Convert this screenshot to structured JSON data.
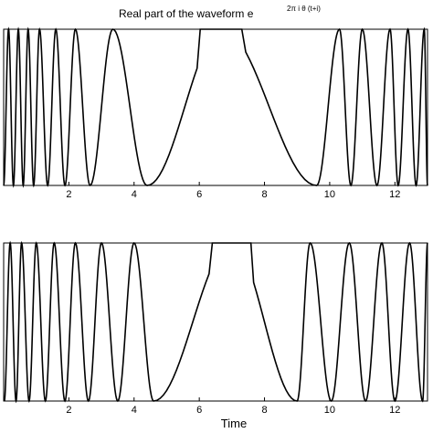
{
  "chart_data": [
    {
      "type": "line",
      "title": "Real part of the waveform e",
      "title_superscript": "2π i θ (t+i)",
      "xlabel": "",
      "ylabel": "",
      "xlim": [
        0,
        13
      ],
      "ylim": [
        -1,
        1
      ],
      "xticks": [
        2,
        4,
        6,
        8,
        10,
        12
      ],
      "grid": false,
      "legend": "none",
      "series": [
        {
          "peaks_x": [
            0.15,
            0.45,
            0.75,
            1.1,
            1.6,
            2.2,
            3.35,
            6.7,
            10.3,
            11.0,
            11.85,
            12.4,
            12.9
          ],
          "troughs_x": [
            0.3,
            0.6,
            0.92,
            1.35,
            1.88,
            2.65,
            4.4,
            9.6,
            10.65,
            11.45,
            12.1,
            12.65
          ],
          "flat_top_range": [
            6.0,
            7.4
          ]
        }
      ]
    },
    {
      "type": "line",
      "title": "",
      "xlabel": "Time",
      "ylabel": "",
      "xlim": [
        0,
        13
      ],
      "ylim": [
        -1,
        1
      ],
      "xticks": [
        2,
        4,
        6,
        8,
        10,
        12
      ],
      "grid": false,
      "legend": "none",
      "series": [
        {
          "peaks_x": [
            0.2,
            0.55,
            1.0,
            1.55,
            2.2,
            3.0,
            4.0,
            7.0,
            9.4,
            10.6,
            11.6,
            12.45
          ],
          "troughs_x": [
            0.38,
            0.78,
            1.28,
            1.88,
            2.6,
            3.5,
            4.6,
            9.0,
            10.05,
            11.1,
            12.0,
            12.85
          ],
          "flat_top_range": [
            6.4,
            7.6
          ]
        }
      ]
    }
  ]
}
